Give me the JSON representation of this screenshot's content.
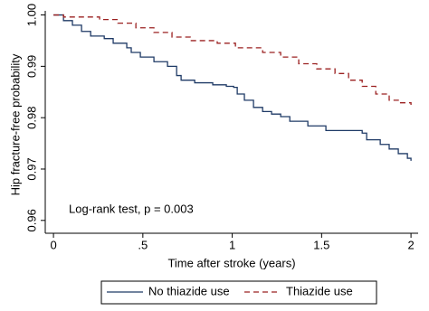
{
  "chart_data": {
    "type": "step",
    "y_label": "Hip fracture-free probability",
    "x_label": "Time after stroke (years)",
    "annotation": "Log-rank test, p = 0.003",
    "xlim": [
      -0.046,
      2.04
    ],
    "xticks": [
      0,
      {
        "value": 0.5,
        "label": ".5"
      },
      1,
      1.5,
      2
    ],
    "ylim": [
      0.9575,
      1.0008
    ],
    "yticks": [
      {
        "value": 1,
        "label": "1.00"
      },
      0.99,
      0.98,
      0.97,
      0.96
    ],
    "series": [
      {
        "name": "No thiazide use",
        "color": "#1f3a66",
        "dash": "none",
        "x": [
          0,
          0.056,
          0.106,
          0.157,
          0.208,
          0.284,
          0.334,
          0.41,
          0.435,
          0.486,
          0.562,
          0.638,
          0.689,
          0.714,
          0.79,
          0.891,
          0.967,
          1.008,
          1.028,
          1.068,
          1.119,
          1.17,
          1.22,
          1.271,
          1.322,
          1.423,
          1.524,
          1.727,
          1.752,
          1.828,
          1.878,
          1.929,
          1.98,
          2.0
        ],
        "values": [
          1.0,
          0.9989,
          0.998,
          0.9968,
          0.9959,
          0.9954,
          0.9945,
          0.9936,
          0.9927,
          0.9918,
          0.9909,
          0.99,
          0.9882,
          0.9873,
          0.9868,
          0.9864,
          0.9861,
          0.9859,
          0.9846,
          0.9834,
          0.982,
          0.9812,
          0.9807,
          0.9802,
          0.9793,
          0.9784,
          0.9775,
          0.977,
          0.9757,
          0.9748,
          0.9739,
          0.973,
          0.9721,
          0.9716
        ]
      },
      {
        "name": "Thiazide use",
        "color": "#9b2020",
        "dash": "6,4",
        "x": [
          0,
          0.056,
          0.258,
          0.36,
          0.461,
          0.562,
          0.663,
          0.765,
          0.916,
          1.018,
          1.17,
          1.271,
          1.372,
          1.473,
          1.575,
          1.651,
          1.727,
          1.803,
          1.878,
          1.929,
          2.0
        ],
        "values": [
          1.0,
          0.9996,
          0.9991,
          0.9984,
          0.9975,
          0.9966,
          0.9957,
          0.995,
          0.9945,
          0.9936,
          0.9927,
          0.9918,
          0.9905,
          0.9895,
          0.9886,
          0.9873,
          0.9861,
          0.9846,
          0.9834,
          0.9829,
          0.9825
        ]
      }
    ]
  }
}
